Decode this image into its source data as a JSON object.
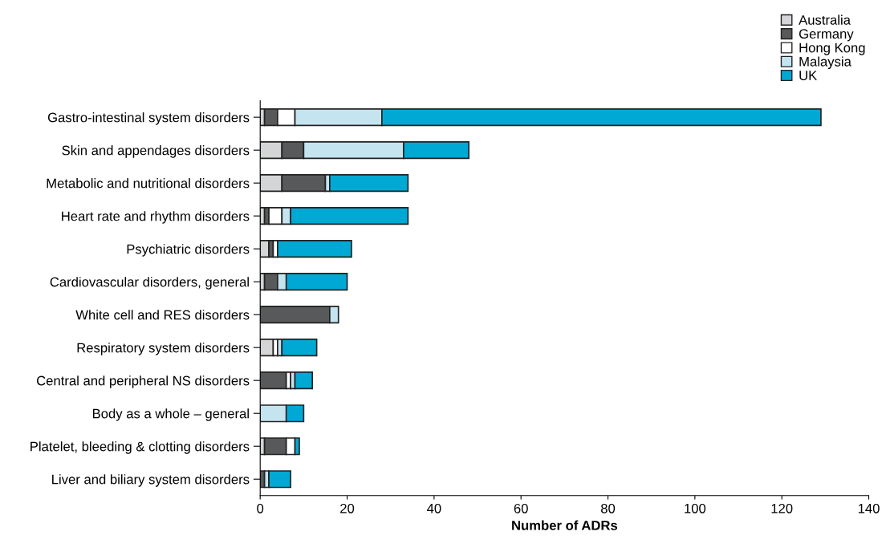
{
  "chart_data": {
    "type": "bar",
    "orientation": "horizontal",
    "stacked": true,
    "xlabel": "Number of ADRs",
    "categories": [
      "Gastro-intestinal system disorders",
      "Skin and appendages disorders",
      "Metabolic and nutritional disorders",
      "Heart rate and rhythm disorders",
      "Psychiatric disorders",
      "Cardiovascular disorders, general",
      "White cell and RES disorders",
      "Respiratory system disorders",
      "Central and peripheral NS disorders",
      "Body as a whole – general",
      "Platelet, bleeding & clotting disorders",
      "Liver and biliary system disorders"
    ],
    "series": [
      {
        "name": "Australia",
        "color": "#d4d5d7",
        "values": [
          1,
          5,
          5,
          1,
          2,
          1,
          0,
          3,
          0,
          0,
          1,
          0
        ]
      },
      {
        "name": "Germany",
        "color": "#58595b",
        "values": [
          3,
          5,
          10,
          1,
          1,
          3,
          16,
          0,
          6,
          0,
          5,
          1
        ]
      },
      {
        "name": "Hong Kong",
        "color": "#ffffff",
        "values": [
          4,
          0,
          0,
          3,
          1,
          0,
          0,
          1,
          1,
          0,
          2,
          0
        ]
      },
      {
        "name": "Malaysia",
        "color": "#c4e4f0",
        "values": [
          20,
          23,
          1,
          2,
          0,
          2,
          2,
          1,
          1,
          6,
          0,
          1
        ]
      },
      {
        "name": "UK",
        "color": "#00a9d4",
        "values": [
          101,
          15,
          18,
          27,
          17,
          14,
          0,
          8,
          4,
          4,
          1,
          5
        ]
      }
    ],
    "xlim": [
      0,
      140
    ],
    "xticks": [
      0,
      20,
      40,
      60,
      80,
      100,
      120,
      140
    ],
    "grid": false,
    "legend": "top right"
  }
}
